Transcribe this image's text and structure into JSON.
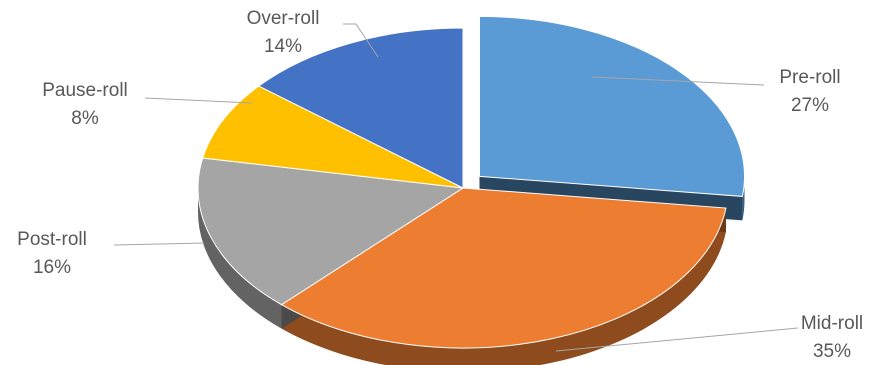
{
  "chart_data": {
    "type": "pie",
    "title": "",
    "legend": "none",
    "slices": [
      {
        "label": "Pre-roll",
        "value": 27,
        "value_label": "27%",
        "color": "#5B9BD5",
        "exploded": true
      },
      {
        "label": "Mid-roll",
        "value": 35,
        "value_label": "35%",
        "color": "#ED7D31",
        "exploded": false
      },
      {
        "label": "Post-roll",
        "value": 16,
        "value_label": "16%",
        "color": "#A5A5A5",
        "exploded": false
      },
      {
        "label": "Pause-roll",
        "value": 8,
        "value_label": "8%",
        "color": "#FFC000",
        "exploded": false
      },
      {
        "label": "Over-roll",
        "value": 14,
        "value_label": "14%",
        "color": "#4472C4",
        "exploded": false
      }
    ]
  }
}
